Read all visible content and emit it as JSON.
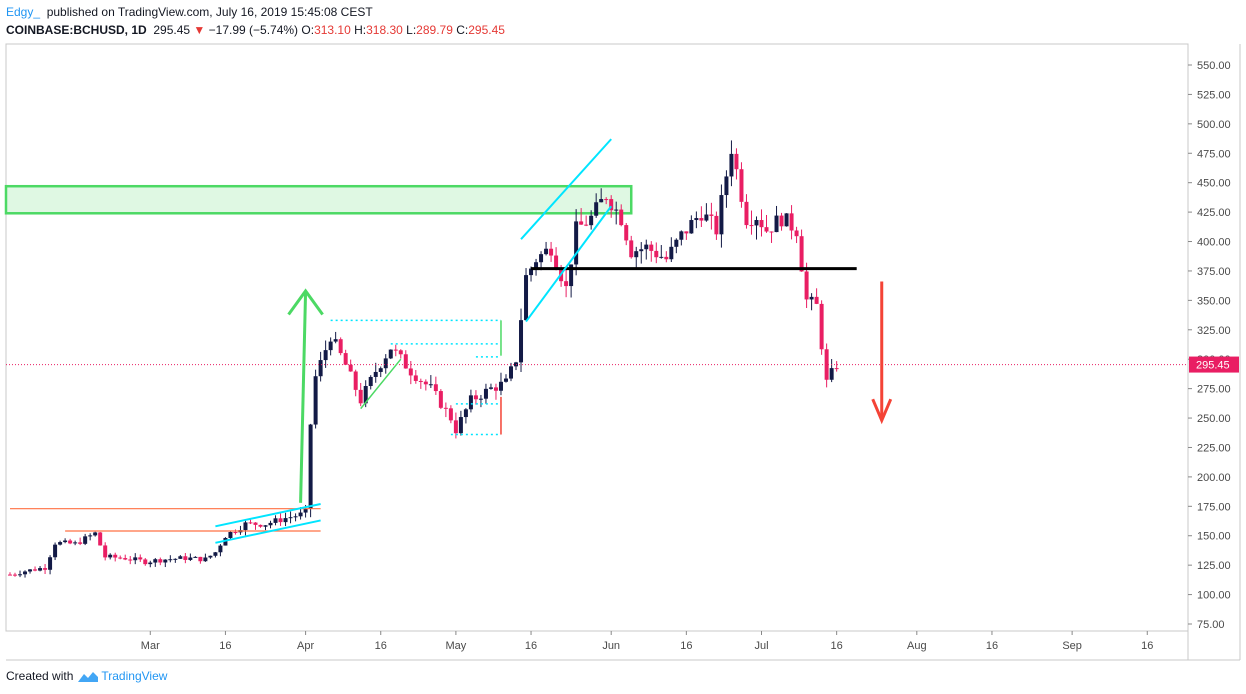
{
  "header": {
    "author": "Edgy_",
    "published": "published on TradingView.com, July 16, 2019 15:45:08 CEST",
    "symbol": "COINBASE:BCHUSD, 1D",
    "last": "295.45",
    "change": "−17.99 (−5.74%)",
    "o_label": "O:",
    "o": "313.10",
    "h_label": "H:",
    "h": "318.30",
    "l_label": "L:",
    "l": "289.79",
    "c_label": "C:",
    "c": "295.45"
  },
  "footer": {
    "created": "Created with",
    "brand": "TradingView"
  },
  "colors": {
    "up": "#131a46",
    "down": "#e91e63",
    "last_price": "#e91e63",
    "support": "#000000",
    "zone": "#4cd964",
    "channel": "#00e5ff",
    "projection": "#4cd964",
    "target": "#f44336",
    "range": "#ff7043"
  },
  "chart_data": {
    "type": "candlestick",
    "symbol": "COINBASE:BCHUSD",
    "interval": "1D",
    "ylim": [
      75,
      560
    ],
    "y_ticks": [
      "550.00",
      "525.00",
      "500.00",
      "475.00",
      "450.00",
      "425.00",
      "400.00",
      "375.00",
      "350.00",
      "325.00",
      "300.00",
      "275.00",
      "250.00",
      "225.00",
      "200.00",
      "175.00",
      "150.00",
      "125.00",
      "100.00",
      "75.00"
    ],
    "x_ticks": [
      "Mar",
      "16",
      "Apr",
      "16",
      "May",
      "16",
      "Jun",
      "16",
      "Jul",
      "16",
      "Aug",
      "16",
      "Sep",
      "16"
    ],
    "last_price_label": "295.45",
    "approx_closes": [
      [
        "2019-02-01",
        117
      ],
      [
        "2019-02-04",
        120
      ],
      [
        "2019-02-08",
        123
      ],
      [
        "2019-02-10",
        144
      ],
      [
        "2019-02-14",
        143
      ],
      [
        "2019-02-18",
        152
      ],
      [
        "2019-02-20",
        132
      ],
      [
        "2019-02-24",
        131
      ],
      [
        "2019-02-28",
        128
      ],
      [
        "2019-03-04",
        130
      ],
      [
        "2019-03-08",
        131
      ],
      [
        "2019-03-12",
        130
      ],
      [
        "2019-03-14",
        136
      ],
      [
        "2019-03-16",
        150
      ],
      [
        "2019-03-20",
        160
      ],
      [
        "2019-03-24",
        160
      ],
      [
        "2019-03-28",
        165
      ],
      [
        "2019-03-31",
        168
      ],
      [
        "2019-04-01",
        170
      ],
      [
        "2019-04-02",
        245
      ],
      [
        "2019-04-03",
        285
      ],
      [
        "2019-04-06",
        320
      ],
      [
        "2019-04-09",
        295
      ],
      [
        "2019-04-12",
        265
      ],
      [
        "2019-04-15",
        290
      ],
      [
        "2019-04-18",
        310
      ],
      [
        "2019-04-22",
        290
      ],
      [
        "2019-04-26",
        275
      ],
      [
        "2019-04-30",
        250
      ],
      [
        "2019-05-01",
        240
      ],
      [
        "2019-05-04",
        265
      ],
      [
        "2019-05-08",
        275
      ],
      [
        "2019-05-11",
        280
      ],
      [
        "2019-05-13",
        300
      ],
      [
        "2019-05-15",
        370
      ],
      [
        "2019-05-17",
        385
      ],
      [
        "2019-05-20",
        395
      ],
      [
        "2019-05-23",
        360
      ],
      [
        "2019-05-25",
        410
      ],
      [
        "2019-05-28",
        420
      ],
      [
        "2019-05-31",
        440
      ],
      [
        "2019-06-03",
        420
      ],
      [
        "2019-06-05",
        392
      ],
      [
        "2019-06-08",
        395
      ],
      [
        "2019-06-12",
        385
      ],
      [
        "2019-06-15",
        405
      ],
      [
        "2019-06-19",
        425
      ],
      [
        "2019-06-22",
        410
      ],
      [
        "2019-06-25",
        480
      ],
      [
        "2019-06-28",
        420
      ],
      [
        "2019-06-30",
        422
      ],
      [
        "2019-07-02",
        410
      ],
      [
        "2019-07-05",
        420
      ],
      [
        "2019-07-08",
        410
      ],
      [
        "2019-07-10",
        350
      ],
      [
        "2019-07-12",
        345
      ],
      [
        "2019-07-14",
        280
      ],
      [
        "2019-07-16",
        295.45
      ]
    ],
    "horizontal_levels": [
      377
    ],
    "resistance_zone": [
      424,
      447
    ]
  }
}
